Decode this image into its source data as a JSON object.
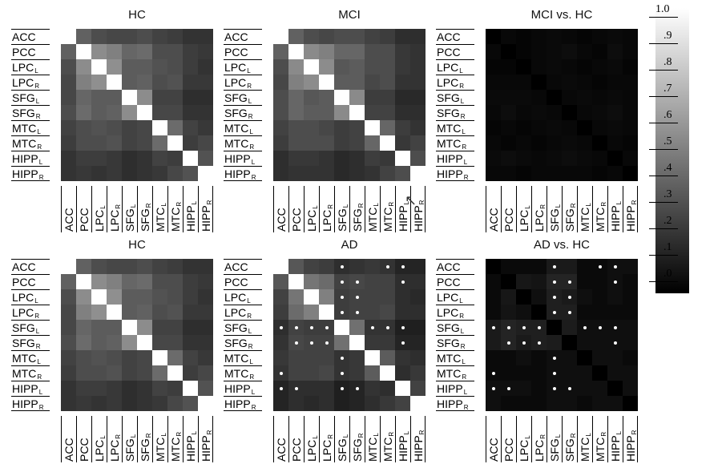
{
  "regions": [
    {
      "base": "ACC",
      "sub": ""
    },
    {
      "base": "PCC",
      "sub": ""
    },
    {
      "base": "LPC",
      "sub": "L"
    },
    {
      "base": "LPC",
      "sub": "R"
    },
    {
      "base": "SFG",
      "sub": "L"
    },
    {
      "base": "SFG",
      "sub": "R"
    },
    {
      "base": "MTC",
      "sub": "L"
    },
    {
      "base": "MTC",
      "sub": "R"
    },
    {
      "base": "HIPP",
      "sub": "L"
    },
    {
      "base": "HIPP",
      "sub": "R"
    }
  ],
  "colorbar": {
    "ticks": [
      "1.0",
      ".9",
      ".8",
      ".7",
      ".6",
      ".5",
      ".4",
      ".3",
      ".2",
      ".1",
      ".0"
    ],
    "range": [
      0,
      1
    ],
    "gradient": [
      "#000000",
      "#ffffff"
    ]
  },
  "chart_data": [
    {
      "type": "heatmap",
      "title": "HC",
      "matrix": [
        [
          1.0,
          0.38,
          0.3,
          0.28,
          0.28,
          0.3,
          0.26,
          0.24,
          0.2,
          0.2
        ],
        [
          0.38,
          1.0,
          0.55,
          0.5,
          0.4,
          0.42,
          0.3,
          0.3,
          0.24,
          0.22
        ],
        [
          0.3,
          0.55,
          1.0,
          0.56,
          0.36,
          0.36,
          0.32,
          0.3,
          0.24,
          0.2
        ],
        [
          0.28,
          0.5,
          0.56,
          1.0,
          0.36,
          0.38,
          0.3,
          0.32,
          0.22,
          0.22
        ],
        [
          0.28,
          0.4,
          0.36,
          0.36,
          1.0,
          0.55,
          0.26,
          0.26,
          0.18,
          0.18
        ],
        [
          0.3,
          0.42,
          0.36,
          0.38,
          0.55,
          1.0,
          0.28,
          0.28,
          0.2,
          0.2
        ],
        [
          0.26,
          0.3,
          0.32,
          0.3,
          0.26,
          0.28,
          1.0,
          0.42,
          0.26,
          0.22
        ],
        [
          0.24,
          0.3,
          0.3,
          0.32,
          0.26,
          0.28,
          0.42,
          1.0,
          0.24,
          0.28
        ],
        [
          0.2,
          0.24,
          0.24,
          0.22,
          0.18,
          0.2,
          0.26,
          0.24,
          1.0,
          0.32
        ],
        [
          0.2,
          0.22,
          0.2,
          0.22,
          0.18,
          0.2,
          0.22,
          0.28,
          0.32,
          1.0
        ]
      ],
      "points": []
    },
    {
      "type": "heatmap",
      "title": "MCI",
      "matrix": [
        [
          1.0,
          0.38,
          0.3,
          0.28,
          0.3,
          0.3,
          0.26,
          0.24,
          0.18,
          0.18
        ],
        [
          0.38,
          1.0,
          0.54,
          0.5,
          0.4,
          0.4,
          0.3,
          0.3,
          0.22,
          0.2
        ],
        [
          0.3,
          0.54,
          1.0,
          0.55,
          0.34,
          0.36,
          0.3,
          0.3,
          0.22,
          0.2
        ],
        [
          0.28,
          0.5,
          0.55,
          1.0,
          0.36,
          0.36,
          0.28,
          0.3,
          0.2,
          0.2
        ],
        [
          0.3,
          0.4,
          0.34,
          0.36,
          1.0,
          0.54,
          0.24,
          0.24,
          0.16,
          0.16
        ],
        [
          0.3,
          0.4,
          0.36,
          0.36,
          0.54,
          1.0,
          0.26,
          0.26,
          0.18,
          0.18
        ],
        [
          0.26,
          0.3,
          0.3,
          0.28,
          0.24,
          0.26,
          1.0,
          0.4,
          0.24,
          0.2
        ],
        [
          0.24,
          0.3,
          0.3,
          0.3,
          0.24,
          0.26,
          0.4,
          1.0,
          0.22,
          0.26
        ],
        [
          0.18,
          0.22,
          0.22,
          0.2,
          0.16,
          0.18,
          0.24,
          0.22,
          1.0,
          0.3
        ],
        [
          0.18,
          0.2,
          0.2,
          0.2,
          0.16,
          0.18,
          0.2,
          0.26,
          0.3,
          1.0
        ]
      ],
      "points": []
    },
    {
      "type": "heatmap",
      "title": "MCI vs. HC",
      "matrix": [
        [
          0.0,
          0.03,
          0.02,
          0.03,
          0.04,
          0.03,
          0.02,
          0.03,
          0.04,
          0.03
        ],
        [
          0.03,
          0.0,
          0.02,
          0.03,
          0.04,
          0.05,
          0.03,
          0.02,
          0.05,
          0.03
        ],
        [
          0.02,
          0.02,
          0.0,
          0.03,
          0.04,
          0.03,
          0.02,
          0.03,
          0.04,
          0.02
        ],
        [
          0.03,
          0.03,
          0.03,
          0.0,
          0.03,
          0.04,
          0.03,
          0.02,
          0.03,
          0.03
        ],
        [
          0.04,
          0.04,
          0.04,
          0.03,
          0.0,
          0.03,
          0.04,
          0.03,
          0.04,
          0.03
        ],
        [
          0.03,
          0.05,
          0.03,
          0.04,
          0.03,
          0.0,
          0.03,
          0.04,
          0.05,
          0.03
        ],
        [
          0.02,
          0.03,
          0.02,
          0.03,
          0.04,
          0.03,
          0.0,
          0.03,
          0.04,
          0.03
        ],
        [
          0.03,
          0.02,
          0.03,
          0.02,
          0.03,
          0.04,
          0.03,
          0.0,
          0.03,
          0.02
        ],
        [
          0.04,
          0.05,
          0.04,
          0.03,
          0.04,
          0.05,
          0.04,
          0.03,
          0.0,
          0.03
        ],
        [
          0.03,
          0.03,
          0.02,
          0.03,
          0.03,
          0.03,
          0.03,
          0.02,
          0.03,
          0.0
        ]
      ],
      "points": []
    },
    {
      "type": "heatmap",
      "title": "HC",
      "matrix": [
        [
          1.0,
          0.38,
          0.3,
          0.28,
          0.28,
          0.3,
          0.26,
          0.24,
          0.2,
          0.2
        ],
        [
          0.38,
          1.0,
          0.55,
          0.5,
          0.4,
          0.42,
          0.3,
          0.3,
          0.24,
          0.22
        ],
        [
          0.3,
          0.55,
          1.0,
          0.56,
          0.36,
          0.36,
          0.32,
          0.3,
          0.24,
          0.2
        ],
        [
          0.28,
          0.5,
          0.56,
          1.0,
          0.36,
          0.38,
          0.3,
          0.32,
          0.22,
          0.22
        ],
        [
          0.28,
          0.4,
          0.36,
          0.36,
          1.0,
          0.55,
          0.26,
          0.26,
          0.18,
          0.18
        ],
        [
          0.3,
          0.42,
          0.36,
          0.38,
          0.55,
          1.0,
          0.28,
          0.28,
          0.2,
          0.2
        ],
        [
          0.26,
          0.3,
          0.32,
          0.3,
          0.26,
          0.28,
          1.0,
          0.42,
          0.26,
          0.22
        ],
        [
          0.24,
          0.3,
          0.3,
          0.32,
          0.26,
          0.28,
          0.42,
          1.0,
          0.24,
          0.28
        ],
        [
          0.2,
          0.24,
          0.24,
          0.22,
          0.18,
          0.2,
          0.26,
          0.24,
          1.0,
          0.32
        ],
        [
          0.2,
          0.22,
          0.2,
          0.22,
          0.18,
          0.2,
          0.22,
          0.28,
          0.32,
          1.0
        ]
      ],
      "points": []
    },
    {
      "type": "heatmap",
      "title": "AD",
      "matrix": [
        [
          1.0,
          0.34,
          0.26,
          0.24,
          0.18,
          0.2,
          0.22,
          0.2,
          0.14,
          0.14
        ],
        [
          0.34,
          1.0,
          0.46,
          0.42,
          0.26,
          0.28,
          0.26,
          0.26,
          0.18,
          0.18
        ],
        [
          0.26,
          0.46,
          1.0,
          0.5,
          0.24,
          0.26,
          0.26,
          0.26,
          0.18,
          0.16
        ],
        [
          0.24,
          0.42,
          0.5,
          1.0,
          0.24,
          0.26,
          0.26,
          0.28,
          0.18,
          0.18
        ],
        [
          0.18,
          0.26,
          0.24,
          0.24,
          1.0,
          0.44,
          0.2,
          0.2,
          0.12,
          0.12
        ],
        [
          0.2,
          0.28,
          0.26,
          0.26,
          0.44,
          1.0,
          0.22,
          0.22,
          0.14,
          0.14
        ],
        [
          0.22,
          0.26,
          0.26,
          0.26,
          0.2,
          0.22,
          1.0,
          0.36,
          0.2,
          0.18
        ],
        [
          0.2,
          0.26,
          0.26,
          0.28,
          0.2,
          0.22,
          0.36,
          1.0,
          0.18,
          0.22
        ],
        [
          0.14,
          0.18,
          0.18,
          0.18,
          0.12,
          0.14,
          0.2,
          0.18,
          1.0,
          0.26
        ],
        [
          0.14,
          0.18,
          0.16,
          0.18,
          0.12,
          0.14,
          0.18,
          0.22,
          0.26,
          1.0
        ]
      ],
      "points": [
        [
          0,
          4
        ],
        [
          0,
          7
        ],
        [
          0,
          8
        ],
        [
          1,
          4
        ],
        [
          1,
          5
        ],
        [
          1,
          8
        ],
        [
          2,
          4
        ],
        [
          2,
          5
        ],
        [
          3,
          4
        ],
        [
          3,
          5
        ],
        [
          4,
          0
        ],
        [
          4,
          1
        ],
        [
          4,
          2
        ],
        [
          4,
          3
        ],
        [
          4,
          6
        ],
        [
          4,
          7
        ],
        [
          4,
          8
        ],
        [
          5,
          1
        ],
        [
          5,
          2
        ],
        [
          5,
          3
        ],
        [
          5,
          8
        ],
        [
          6,
          4
        ],
        [
          7,
          0
        ],
        [
          7,
          4
        ],
        [
          8,
          0
        ],
        [
          8,
          1
        ],
        [
          8,
          4
        ],
        [
          8,
          5
        ]
      ]
    },
    {
      "type": "heatmap",
      "title": "AD vs. HC",
      "matrix": [
        [
          0.0,
          0.04,
          0.04,
          0.04,
          0.1,
          0.1,
          0.04,
          0.04,
          0.06,
          0.06
        ],
        [
          0.04,
          0.0,
          0.09,
          0.08,
          0.14,
          0.14,
          0.04,
          0.04,
          0.06,
          0.04
        ],
        [
          0.04,
          0.09,
          0.0,
          0.06,
          0.12,
          0.1,
          0.06,
          0.04,
          0.06,
          0.04
        ],
        [
          0.04,
          0.08,
          0.06,
          0.0,
          0.12,
          0.12,
          0.04,
          0.04,
          0.04,
          0.04
        ],
        [
          0.1,
          0.14,
          0.12,
          0.12,
          0.0,
          0.11,
          0.06,
          0.06,
          0.06,
          0.06
        ],
        [
          0.1,
          0.14,
          0.1,
          0.12,
          0.11,
          0.0,
          0.06,
          0.06,
          0.06,
          0.06
        ],
        [
          0.04,
          0.04,
          0.06,
          0.04,
          0.06,
          0.06,
          0.0,
          0.06,
          0.06,
          0.04
        ],
        [
          0.04,
          0.04,
          0.04,
          0.04,
          0.06,
          0.06,
          0.06,
          0.0,
          0.06,
          0.06
        ],
        [
          0.06,
          0.06,
          0.06,
          0.04,
          0.06,
          0.06,
          0.06,
          0.06,
          0.0,
          0.06
        ],
        [
          0.06,
          0.04,
          0.04,
          0.04,
          0.06,
          0.06,
          0.04,
          0.06,
          0.06,
          0.0
        ]
      ],
      "points": [
        [
          0,
          4
        ],
        [
          0,
          7
        ],
        [
          0,
          8
        ],
        [
          1,
          4
        ],
        [
          1,
          5
        ],
        [
          1,
          8
        ],
        [
          2,
          4
        ],
        [
          2,
          5
        ],
        [
          3,
          4
        ],
        [
          3,
          5
        ],
        [
          4,
          0
        ],
        [
          4,
          1
        ],
        [
          4,
          2
        ],
        [
          4,
          3
        ],
        [
          4,
          6
        ],
        [
          4,
          7
        ],
        [
          4,
          8
        ],
        [
          5,
          1
        ],
        [
          5,
          2
        ],
        [
          5,
          3
        ],
        [
          5,
          8
        ],
        [
          6,
          4
        ],
        [
          7,
          0
        ],
        [
          7,
          4
        ],
        [
          8,
          0
        ],
        [
          8,
          1
        ],
        [
          8,
          4
        ],
        [
          8,
          5
        ]
      ]
    }
  ]
}
